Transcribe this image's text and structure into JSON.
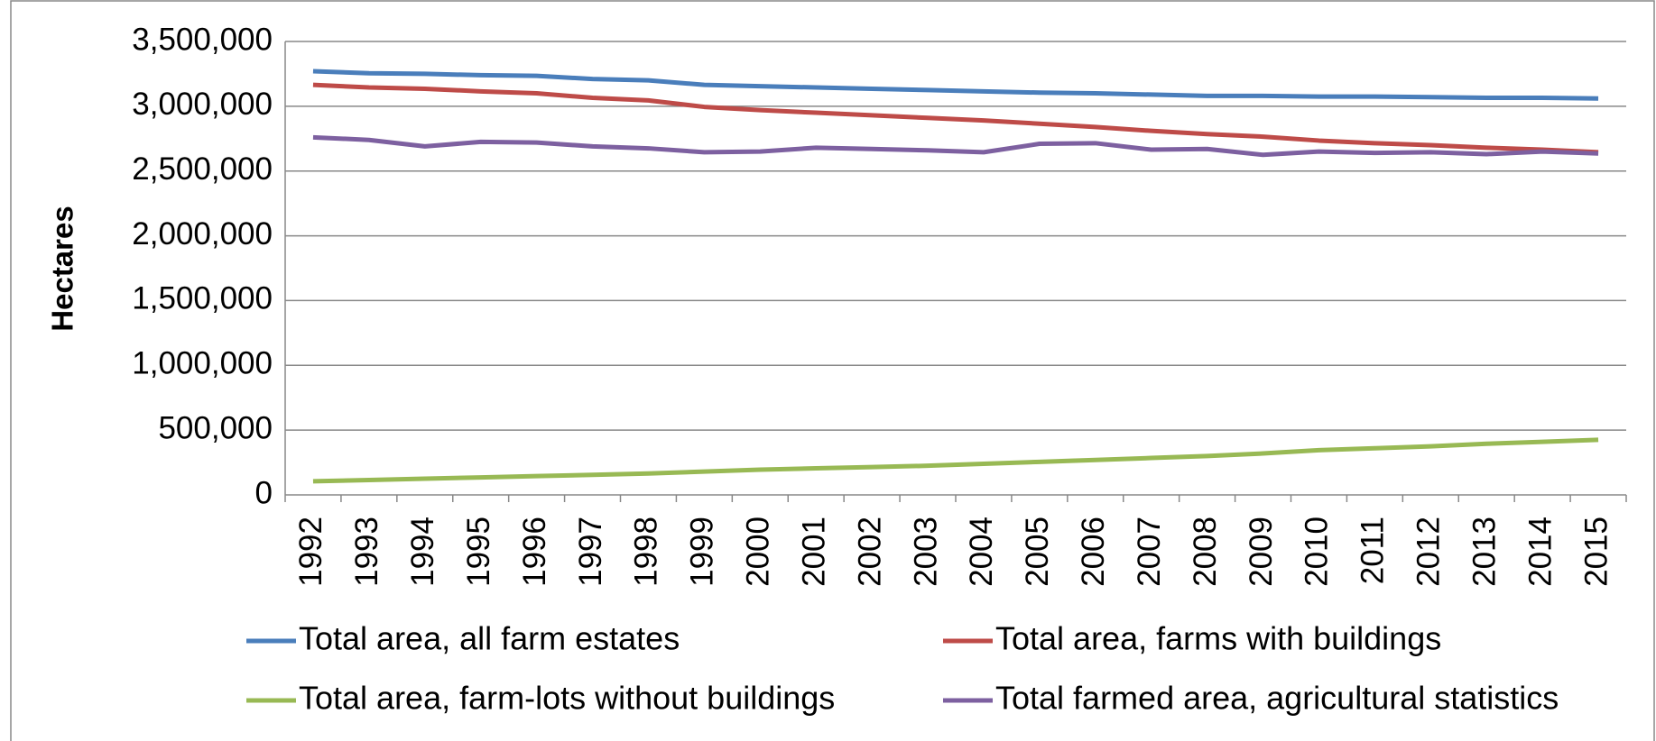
{
  "chart_data": {
    "type": "line",
    "y_label": "Hectares",
    "categories": [
      "1992",
      "1993",
      "1994",
      "1995",
      "1996",
      "1997",
      "1998",
      "1999",
      "2000",
      "2001",
      "2002",
      "2003",
      "2004",
      "2005",
      "2006",
      "2007",
      "2008",
      "2009",
      "2010",
      "2011",
      "2012",
      "2013",
      "2014",
      "2015"
    ],
    "series": [
      {
        "name": "Total area, all farm estates",
        "color": "#4a7ebb",
        "values": [
          3270000,
          3255000,
          3250000,
          3240000,
          3235000,
          3210000,
          3200000,
          3165000,
          3155000,
          3145000,
          3135000,
          3125000,
          3115000,
          3105000,
          3100000,
          3090000,
          3080000,
          3080000,
          3075000,
          3075000,
          3070000,
          3065000,
          3065000,
          3060000
        ]
      },
      {
        "name": "Total area, farms with buildings",
        "color": "#be4b48",
        "values": [
          3165000,
          3145000,
          3135000,
          3115000,
          3100000,
          3065000,
          3045000,
          2995000,
          2970000,
          2950000,
          2930000,
          2910000,
          2890000,
          2865000,
          2840000,
          2810000,
          2785000,
          2765000,
          2735000,
          2715000,
          2700000,
          2680000,
          2665000,
          2645000
        ]
      },
      {
        "name": "Total area, farm-lots without buildings",
        "color": "#98b954",
        "values": [
          105000,
          115000,
          125000,
          135000,
          145000,
          155000,
          165000,
          180000,
          195000,
          205000,
          215000,
          225000,
          240000,
          255000,
          270000,
          285000,
          300000,
          320000,
          345000,
          360000,
          375000,
          395000,
          410000,
          425000
        ]
      },
      {
        "name": "Total farmed area, agricultural statistics",
        "color": "#7d60a0",
        "values": [
          2760000,
          2740000,
          2690000,
          2725000,
          2720000,
          2690000,
          2675000,
          2645000,
          2650000,
          2680000,
          2670000,
          2660000,
          2645000,
          2710000,
          2715000,
          2665000,
          2670000,
          2625000,
          2650000,
          2640000,
          2645000,
          2630000,
          2650000,
          2635000
        ]
      }
    ],
    "ylim": [
      0,
      3500000
    ],
    "yticks": [
      0,
      {
        "value": 500000,
        "label": "500,000"
      },
      {
        "value": 1000000,
        "label": "1,000,000"
      },
      {
        "value": 1500000,
        "label": "1,500,000"
      },
      {
        "value": 2000000,
        "label": "2,000,000"
      },
      {
        "value": 2500000,
        "label": "2,500,000"
      },
      {
        "value": 3000000,
        "label": "3,000,000"
      },
      {
        "value": 3500000,
        "label": "3,500,000"
      }
    ],
    "grid": true,
    "legend": "bottom"
  }
}
